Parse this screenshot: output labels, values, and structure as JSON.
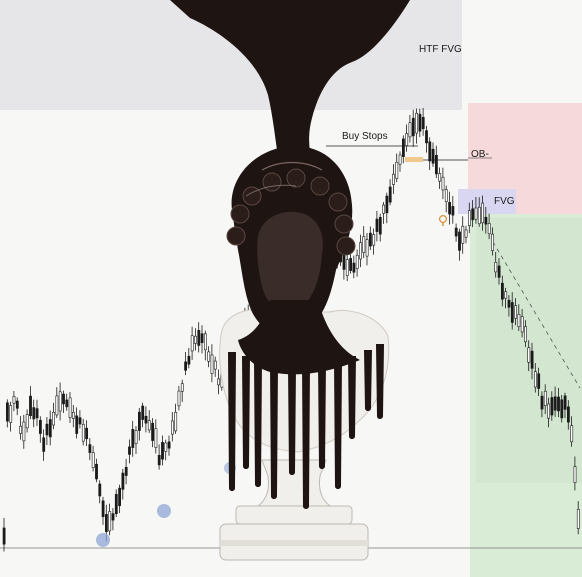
{
  "colors": {
    "htf_zone": "#e6e5e8",
    "ob_zone": "#f6dadb",
    "fvg_zone": "#d8d6f0",
    "bear_zone": "#d9ecd6",
    "candle": "#1b1b1b",
    "sweep_marker": "#8fa6d6",
    "statue_dark": "#1e1412",
    "statue_white": "#f1efeb",
    "background": "#f7f7f5"
  },
  "icons": [
    "lightbulb-icon",
    "sweep-marker",
    "statue-bust"
  ],
  "chart_data": {
    "type": "candlestick",
    "title": "",
    "xlabel": "",
    "ylabel": "",
    "annotations": [
      {
        "id": "htf_fvg",
        "text": "HTF FVG",
        "kind": "zone"
      },
      {
        "id": "buy_stops",
        "text": "Buy Stops",
        "kind": "liquidity-line"
      },
      {
        "id": "ob",
        "text": "OB-",
        "kind": "order-block"
      },
      {
        "id": "fvg",
        "text": "FVG",
        "kind": "zone"
      }
    ],
    "trend": "swing lows swept, rally into HTF FVG above buy stops, then bearish displacement through FVG",
    "grid": false,
    "legend": "none"
  }
}
